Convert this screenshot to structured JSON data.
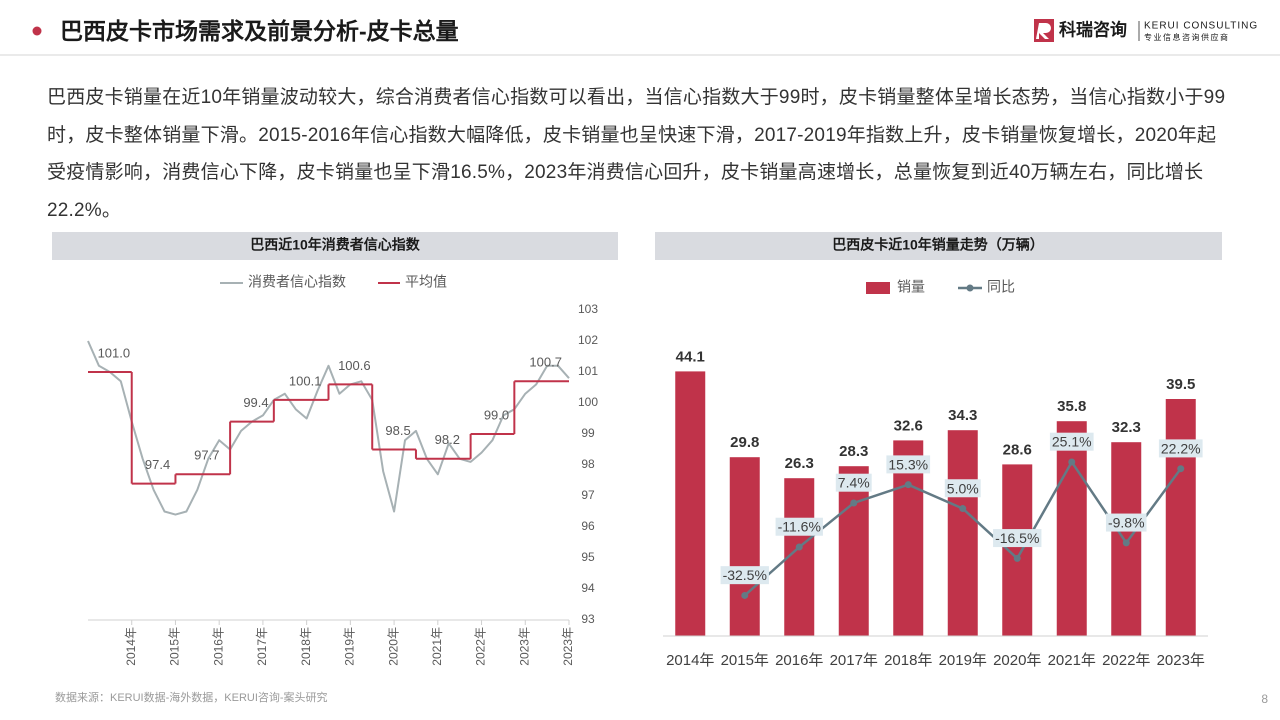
{
  "header": {
    "title": "巴西皮卡市场需求及前景分析-皮卡总量"
  },
  "logo": {
    "name": "科瑞咨询",
    "en": "KERUI CONSULTING",
    "tagline": "专业信息咨询供应商"
  },
  "paragraph": "巴西皮卡销量在近10年销量波动较大，综合消费者信心指数可以看出，当信心指数大于99时，皮卡销量整体呈增长态势，当信心指数小于99时，皮卡整体销量下滑。2015-2016年信心指数大幅降低，皮卡销量也呈快速下滑，2017-2019年指数上升，皮卡销量恢复增长，2020年起受疫情影响，消费信心下降，皮卡销量也呈下滑16.5%，2023年消费信心回升，皮卡销量高速增长，总量恢复到近40万辆左右，同比增长22.2%。",
  "source": "数据来源：KERUI数据-海外数据，KERUI咨询-案头研究",
  "page_number": "8",
  "chart_data": [
    {
      "type": "line",
      "title": "巴西近10年消费者信心指数",
      "categories": [
        null,
        null,
        null,
        null,
        "2014年",
        null,
        null,
        null,
        "2015年",
        null,
        null,
        null,
        "2016年",
        null,
        null,
        null,
        "2017年",
        null,
        null,
        null,
        "2018年",
        null,
        null,
        null,
        "2019年",
        null,
        null,
        null,
        "2020年",
        null,
        null,
        null,
        "2021年",
        null,
        null,
        null,
        "2022年",
        null,
        null,
        null,
        "2023年",
        null,
        null,
        null,
        "2023年"
      ],
      "series": [
        {
          "name": "消费者信心指数",
          "color": "#a7b1b4",
          "values": [
            102.0,
            101.2,
            101.0,
            100.7,
            99.4,
            98.2,
            97.2,
            96.5,
            96.4,
            96.5,
            97.2,
            98.2,
            98.8,
            98.5,
            99.1,
            99.4,
            99.6,
            100.1,
            100.3,
            99.8,
            99.5,
            100.4,
            101.2,
            100.3,
            100.6,
            100.7,
            100.1,
            97.8,
            96.5,
            98.8,
            99.1,
            98.2,
            97.7,
            98.7,
            98.2,
            98.1,
            98.4,
            98.8,
            99.6,
            99.8,
            100.3,
            100.6,
            101.2,
            101.2,
            100.8
          ]
        }
      ],
      "average": {
        "name": "平均值",
        "color": "#c0334a",
        "values": [
          101,
          97.4,
          97.7,
          99.4,
          100.1,
          100.6,
          98.5,
          98.2,
          99,
          100.7
        ],
        "value_labels": [
          "101.0",
          "97.4",
          "97.7",
          "99.4",
          "100.1",
          "100.6",
          "98.5",
          "98.2",
          "99.0",
          "100.7"
        ]
      },
      "ylim": [
        93,
        103
      ],
      "yticks": [
        93,
        94,
        95,
        96,
        97,
        98,
        99,
        100,
        101,
        102,
        103
      ],
      "y_axis_side": "right",
      "legend": "top"
    },
    {
      "type": "bar",
      "title": "巴西皮卡近10年销量走势（万辆）",
      "categories": [
        "2014年",
        "2015年",
        "2016年",
        "2017年",
        "2018年",
        "2019年",
        "2020年",
        "2021年",
        "2022年",
        "2023年"
      ],
      "series": [
        {
          "name": "销量",
          "type": "bar",
          "color": "#c0334a",
          "values": [
            44.1,
            29.8,
            26.3,
            28.3,
            32.6,
            34.3,
            28.6,
            35.8,
            32.3,
            39.5
          ]
        },
        {
          "name": "同比",
          "type": "line",
          "axis": "y2",
          "color": "#637a85",
          "values": [
            null,
            -32.5,
            -11.6,
            7.4,
            15.3,
            5,
            -16.5,
            25.1,
            -9.8,
            22.2
          ],
          "value_labels": [
            null,
            "-32.5%",
            "-11.6%",
            "7.4%",
            "15.3%",
            "5.0%",
            "-16.5%",
            "25.1%",
            "-9.8%",
            "22.2%"
          ]
        }
      ],
      "ylim": [
        0,
        56
      ],
      "y2lim": [
        -50,
        95
      ],
      "legend": "top"
    }
  ]
}
